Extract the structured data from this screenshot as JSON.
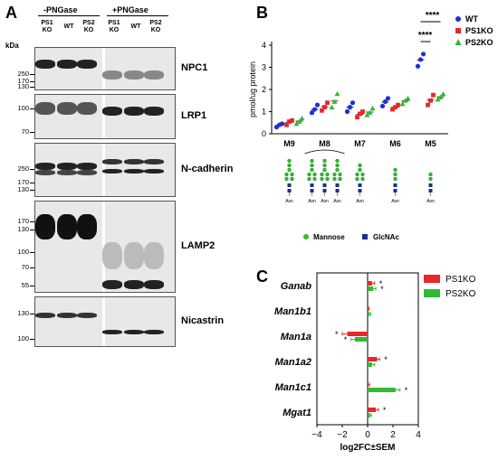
{
  "panelA": {
    "letter": "A",
    "group_neg": "-PNGase",
    "group_pos": "+PNGase",
    "lanes": [
      {
        "l1": "PS1",
        "l2": "KO"
      },
      {
        "l1": "WT",
        "l2": ""
      },
      {
        "l1": "PS2",
        "l2": "KO"
      },
      {
        "l1": "PS1",
        "l2": "KO"
      },
      {
        "l1": "WT",
        "l2": ""
      },
      {
        "l1": "PS2",
        "l2": "KO"
      }
    ],
    "kda": "kDa",
    "blots": [
      {
        "name": "NPC1",
        "markers": [
          "250",
          "170",
          "130"
        ]
      },
      {
        "name": "LRP1",
        "markers": [
          "100",
          "70"
        ]
      },
      {
        "name": "N-cadherin",
        "markers": [
          "250",
          "170",
          "130"
        ]
      },
      {
        "name": "LAMP2",
        "markers": [
          "170",
          "130",
          "100",
          "70",
          "55"
        ]
      },
      {
        "name": "Nicastrin",
        "markers": [
          "130",
          "100"
        ]
      }
    ]
  },
  "panelB": {
    "letter": "B",
    "ylabel": "pmol/ug protein",
    "sig1": "****",
    "sig2": "****",
    "legend": [
      "WT",
      "PS1KO",
      "PS2KO"
    ],
    "glycan_legend": [
      "Mannose",
      "GlcNAc"
    ],
    "asn": "Asn",
    "colors": {
      "WT": "#1f2fd6",
      "PS1KO": "#e8262b",
      "PS2KO": "#33b833"
    },
    "chart_data": {
      "type": "scatter",
      "categories": [
        "M9",
        "M8",
        "M7",
        "M6",
        "M5"
      ],
      "ylim": [
        0,
        4
      ],
      "yticks": [
        "0",
        "1",
        "2",
        "3",
        "4"
      ],
      "series": [
        {
          "name": "WT",
          "points": [
            [
              0.3,
              0.4,
              0.45
            ],
            [
              0.95,
              1.1,
              1.3
            ],
            [
              1.0,
              1.2,
              1.4
            ],
            [
              1.25,
              1.45,
              1.6
            ],
            [
              3.05,
              3.35,
              3.6
            ]
          ],
          "mean": [
            0.38,
            1.1,
            1.2,
            1.43,
            3.33
          ]
        },
        {
          "name": "PS1KO",
          "points": [
            [
              0.4,
              0.55,
              0.6
            ],
            [
              1.05,
              1.2,
              1.4
            ],
            [
              0.75,
              0.9,
              1.0
            ],
            [
              1.1,
              1.2,
              1.3
            ],
            [
              1.3,
              1.5,
              1.75
            ]
          ],
          "mean": [
            0.52,
            1.22,
            0.88,
            1.2,
            1.52
          ]
        },
        {
          "name": "PS2KO",
          "points": [
            [
              0.45,
              0.55,
              0.7
            ],
            [
              1.2,
              1.45,
              1.8
            ],
            [
              0.85,
              0.95,
              1.15
            ],
            [
              1.35,
              1.5,
              1.6
            ],
            [
              1.55,
              1.65,
              1.8
            ]
          ],
          "mean": [
            0.57,
            1.48,
            0.98,
            1.48,
            1.67
          ]
        }
      ]
    }
  },
  "panelC": {
    "letter": "C",
    "xlabel": "log2FC±SEM",
    "legend": [
      "PS1KO",
      "PS2KO"
    ],
    "chart_data": {
      "type": "bar",
      "categories": [
        "Ganab",
        "Man1b1",
        "Man1a",
        "Man1a2",
        "Man1c1",
        "Mgat1"
      ],
      "xlim": [
        -4,
        4
      ],
      "xticks": [
        "−4",
        "−2",
        "0",
        "2",
        "4"
      ],
      "series": [
        {
          "name": "PS1KO",
          "values": [
            0.35,
            0.05,
            -1.6,
            0.75,
            0.05,
            0.65
          ],
          "err": [
            0.2,
            0.05,
            0.4,
            0.2,
            0.1,
            0.2
          ],
          "sig": [
            true,
            false,
            true,
            true,
            false,
            true
          ]
        },
        {
          "name": "PS2KO",
          "values": [
            0.45,
            0.15,
            -1.0,
            0.35,
            2.2,
            0.2
          ],
          "err": [
            0.2,
            0.1,
            0.3,
            0.2,
            0.35,
            0.1
          ],
          "sig": [
            true,
            false,
            true,
            false,
            true,
            false
          ]
        }
      ]
    }
  }
}
